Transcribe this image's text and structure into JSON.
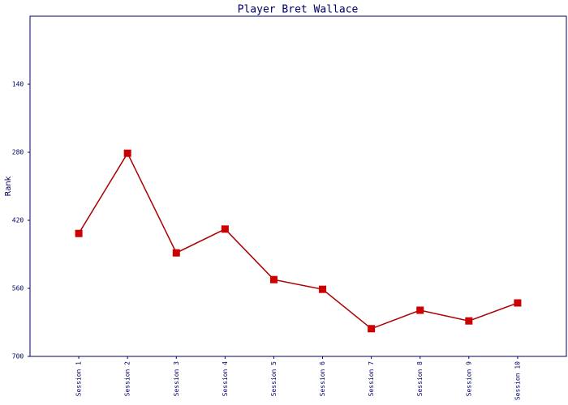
{
  "chart_data": {
    "type": "line",
    "title": "Player Bret Wallace",
    "y_label": "Rank",
    "categories": [
      "Session 1",
      "Session 2",
      "Session 3",
      "Session 4",
      "Session 5",
      "Session 6",
      "Session 7",
      "Session 8",
      "Session 9",
      "Session 10"
    ],
    "series": [
      {
        "name": "Rank",
        "color": "#aa0000",
        "marker_color": "#cc0000",
        "values": [
          447,
          282,
          487,
          438,
          542,
          562,
          643,
          605,
          627,
          590
        ]
      }
    ],
    "ylim": [
      700,
      0
    ],
    "yticks": [
      140,
      280,
      420,
      560,
      700
    ],
    "grid": false
  }
}
